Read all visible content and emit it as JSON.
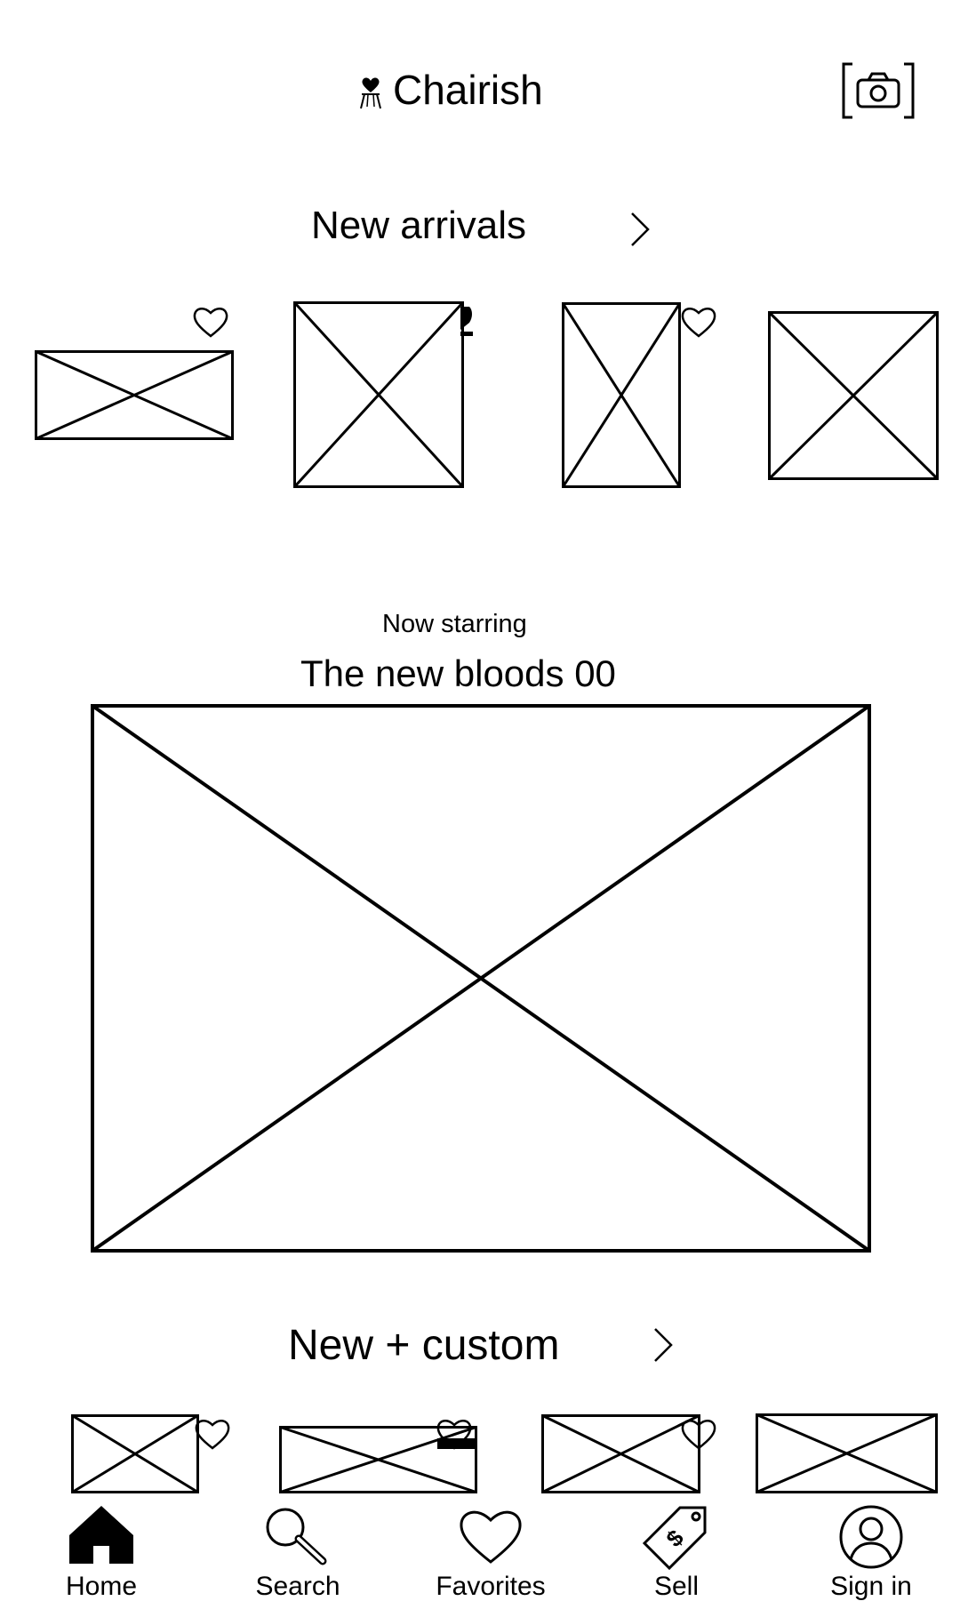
{
  "header": {
    "brand_name": "Chairish",
    "logo_icon": "chair-heart-logo-icon",
    "camera_icon": "camera-scan-icon"
  },
  "new_arrivals": {
    "title": "New arrivals",
    "arrow_icon": "chevron-right-icon",
    "items": [
      {
        "image": "image-placeholder",
        "favorite_icon": "heart-outline-icon"
      },
      {
        "image": "image-placeholder",
        "favorite_icon": "heart-filled-partial-icon"
      },
      {
        "image": "image-placeholder",
        "favorite_icon": "heart-outline-icon"
      },
      {
        "image": "image-placeholder"
      }
    ]
  },
  "feature": {
    "kicker": "Now starring",
    "title": "The new bloods 00",
    "image": "image-placeholder"
  },
  "new_custom": {
    "title": "New + custom",
    "arrow_icon": "chevron-right-icon",
    "items": [
      {
        "image": "image-placeholder",
        "favorite_icon": "heart-outline-icon"
      },
      {
        "image": "image-placeholder",
        "favorite_icon": "heart-outline-icon"
      },
      {
        "image": "image-placeholder",
        "favorite_icon": "heart-outline-icon"
      },
      {
        "image": "image-placeholder"
      }
    ]
  },
  "bottom_nav": {
    "items": [
      {
        "label": "Home",
        "icon": "home-icon",
        "active": true
      },
      {
        "label": "Search",
        "icon": "search-icon"
      },
      {
        "label": "Favorites",
        "icon": "heart-icon"
      },
      {
        "label": "Sell",
        "icon": "price-tag-icon"
      },
      {
        "label": "Sign in",
        "icon": "user-avatar-icon"
      }
    ]
  }
}
